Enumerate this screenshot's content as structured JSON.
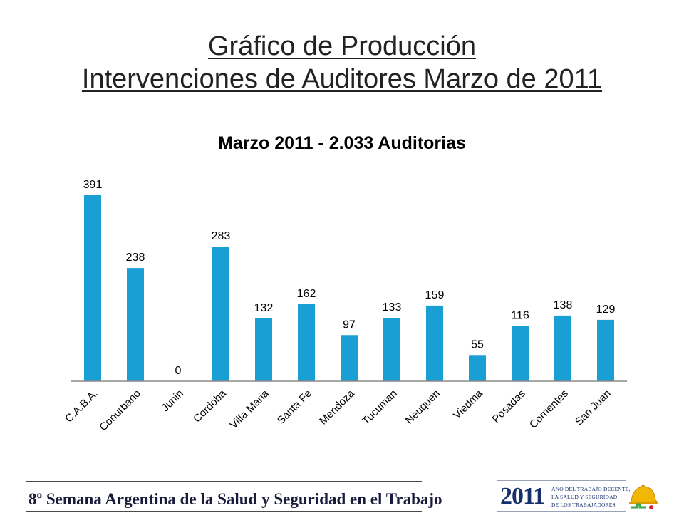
{
  "title_line1": "Gráfico de Producción",
  "title_line2": "Intervenciones de Auditores Marzo de 2011",
  "chart_data": {
    "type": "bar",
    "title": "Marzo 2011 - 2.033 Auditorias",
    "categories": [
      "C.A.B.A.",
      "Conurbano",
      "Junin",
      "Cordoba",
      "Villa Maria",
      "Santa Fe",
      "Mendoza",
      "Tucuman",
      "Neuquen",
      "Viedma",
      "Posadas",
      "Corrientes",
      "San Juan"
    ],
    "values": [
      391,
      238,
      0,
      283,
      132,
      162,
      97,
      133,
      159,
      55,
      116,
      138,
      129
    ],
    "data_labels": [
      "391",
      "238",
      "0",
      "283",
      "132",
      "162",
      "97",
      "133",
      "159",
      "55",
      "116",
      "138",
      "129"
    ],
    "xlabel": "",
    "ylabel": "",
    "ylim": [
      0,
      391
    ],
    "grid": false,
    "legend": "none",
    "bar_color": "#1a9fd4"
  },
  "footer": {
    "banner_text": "8º Semana Argentina de la Salud y Seguridad en el Trabajo",
    "logo_year": "2011",
    "logo_line1": "AÑO DEL TRABAJO DECENTE,",
    "logo_line2": "LA SALUD Y SEGURIDAD",
    "logo_line3": "DE LOS TRABAJADORES",
    "helmet_icon": "helmet-icon"
  }
}
